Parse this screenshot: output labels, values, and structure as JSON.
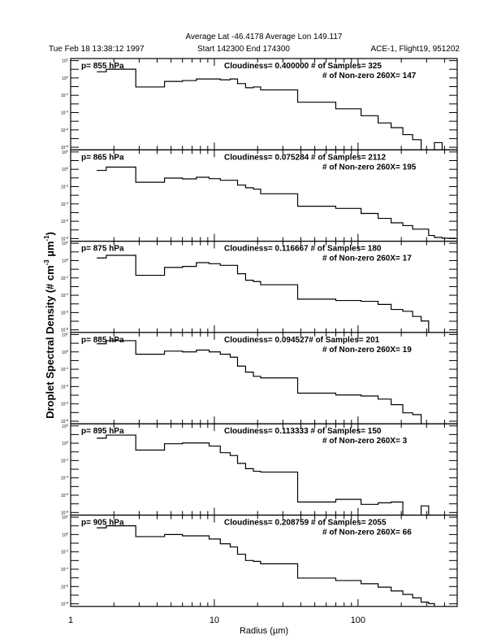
{
  "header": {
    "title": "Average Lat -46.4178  Average Lon  149.117",
    "date": "Tue Feb 18 13:38:12 1997",
    "time_range": "Start 142300  End 174300",
    "flight": "ACE-1, Flight19, 951202"
  },
  "chart_data": {
    "type": "line",
    "style": "step-histogram",
    "xlabel": "Radius (µm)",
    "ylabel": "Droplet Spectral Density (# cm^-3 µm^-1)",
    "ylabel_parts": {
      "main": "Droplet Spectral Density (# cm",
      "exp1": "-3",
      "mid": " µm",
      "exp2": "-1",
      "end": ")"
    },
    "xscale": "log",
    "yscale": "log",
    "xlim": [
      1,
      490
    ],
    "ylim_log10": [
      -8.3,
      2.24
    ],
    "xtick_labels": [
      "1",
      "10",
      "100"
    ],
    "xtick_values": [
      1,
      10,
      100
    ],
    "ytick_exponents": [
      2,
      0,
      -2,
      -4,
      -6,
      -8
    ],
    "bin_edges": [
      1.52,
      1.77,
      2.84,
      4.5,
      6.0,
      7.5,
      9.2,
      11.0,
      12.9,
      14.5,
      16.5,
      18.7,
      21,
      38,
      70,
      105,
      138,
      170,
      205,
      240,
      275,
      310,
      340,
      385,
      430,
      480
    ],
    "value_units": "log10 density",
    "panels": [
      {
        "pressure_label": "p= 855 hPa",
        "stats_line1": "Cloudiness= 0.400000 # of Samples= 325",
        "stats_line2": "# of Non-zero 260X= 147",
        "log10_values": [
          0.71,
          1.01,
          -1.04,
          -0.4,
          -0.3,
          -0.12,
          -0.12,
          -0.21,
          -0.12,
          -0.65,
          -1.13,
          -1.04,
          -1.38,
          -2.8,
          -3.56,
          -4.36,
          -5.19,
          -5.74,
          -6.54,
          -7.13,
          null,
          null,
          -7.47,
          null,
          null
        ]
      },
      {
        "pressure_label": "p= 865 hPa",
        "stats_line1": "Cloudiness= 0.075284 # of Samples= 2112",
        "stats_line2": "# of Non-zero 260X= 195",
        "log10_values": [
          -0.13,
          0.25,
          -1.5,
          -1.02,
          -1.11,
          -0.92,
          -1.08,
          -1.27,
          -1.27,
          -1.82,
          -2.13,
          -2.29,
          -2.83,
          -4.27,
          -4.52,
          -5.1,
          -5.67,
          -6.18,
          -6.5,
          -6.91,
          -6.91,
          -7.64,
          -7.87,
          -7.96,
          -7.96
        ]
      },
      {
        "pressure_label": "p= 875 hPa",
        "stats_line1": "Cloudiness= 0.116667 # of Samples= 180",
        "stats_line2": "# of Non-zero 260X= 17",
        "log10_values": [
          0.3,
          0.61,
          -1.7,
          -0.79,
          -0.67,
          -0.24,
          -0.36,
          -0.55,
          -0.55,
          -1.52,
          -2.27,
          -2.42,
          -2.79,
          -4.45,
          -4.61,
          -4.7,
          -5.06,
          -5.64,
          -5.85,
          -6.45,
          -6.97,
          null,
          null,
          null,
          null
        ]
      },
      {
        "pressure_label": "p= 885 hPa",
        "stats_line1": "Cloudiness= 0.094527# of Samples= 201",
        "stats_line2": "# of Non-zero 260X= 19",
        "log10_values": [
          0.94,
          1.3,
          -0.27,
          0.09,
          0.0,
          0.21,
          0.0,
          -0.27,
          -0.61,
          -1.64,
          -2.33,
          -2.82,
          -3.0,
          -4.76,
          -4.97,
          -5.09,
          -5.45,
          -6.09,
          -7.03,
          -7.24,
          null,
          null,
          null,
          null,
          null
        ]
      },
      {
        "pressure_label": "p= 895 hPa",
        "stats_line1": "Cloudiness= 0.113333 # of Samples= 150",
        "stats_line2": "# of Non-zero 260X= 3",
        "log10_values": [
          0.58,
          0.94,
          -0.79,
          -0.06,
          0.03,
          0.03,
          -0.33,
          -1.09,
          -1.42,
          -2.33,
          -2.94,
          -3.24,
          -3.33,
          -6.79,
          -6.48,
          -7.06,
          -6.88,
          -6.79,
          null,
          null,
          -7.24,
          null,
          null,
          null,
          null
        ]
      },
      {
        "pressure_label": "p= 905 hPa",
        "stats_line1": "Cloudiness= 0.208759 # of Samples= 2055",
        "stats_line2": "# of Non-zero 260X= 66",
        "log10_values": [
          0.77,
          1.01,
          -0.24,
          0.0,
          -0.15,
          -0.15,
          -0.52,
          -1.07,
          -1.44,
          -2.27,
          -3.0,
          -3.1,
          -3.38,
          -5.03,
          -5.31,
          -5.68,
          -6.08,
          -6.51,
          -6.91,
          -7.31,
          -7.8,
          -7.98,
          null,
          null,
          null
        ]
      }
    ]
  }
}
